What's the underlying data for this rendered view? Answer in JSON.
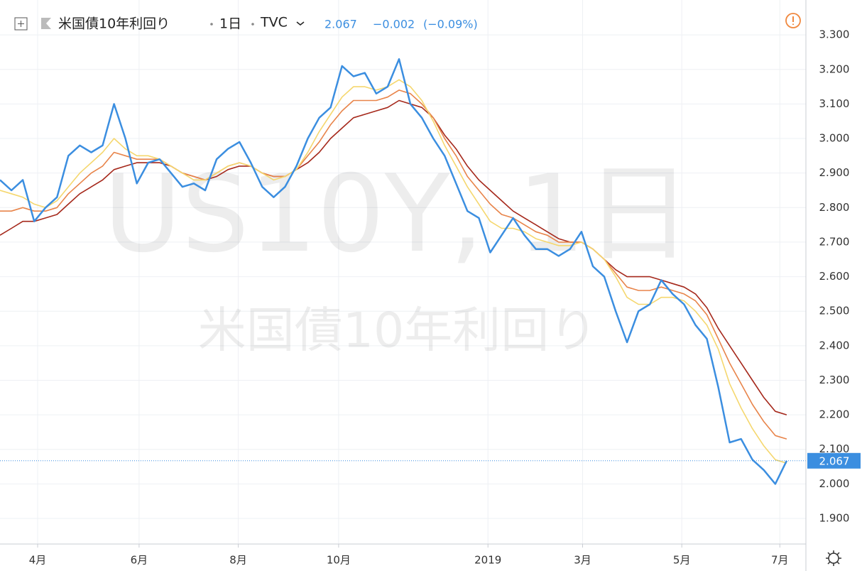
{
  "header": {
    "title": "米国債10年利回り",
    "interval": "1日",
    "exchange": "TVC",
    "last": 2.067,
    "change": "−0.002",
    "change_pct": "(−0.09%)"
  },
  "watermark": {
    "symbol": "US10Y, 1日",
    "title": "米国債10年利回り"
  },
  "chart_data": {
    "type": "line",
    "x": [
      0,
      1,
      2,
      3,
      4,
      5,
      6,
      7,
      8,
      9,
      10,
      11,
      12,
      13,
      14,
      15,
      16,
      17,
      18,
      19,
      20,
      21,
      22,
      23,
      24,
      25,
      26,
      27,
      28,
      29,
      30,
      31,
      32,
      33,
      34,
      35,
      36,
      37,
      38,
      39,
      40,
      41,
      42,
      43,
      44,
      45,
      46,
      47,
      48,
      49,
      50,
      51,
      52,
      53,
      54,
      55,
      56,
      57,
      58,
      59,
      60,
      61,
      62,
      63,
      64,
      65,
      66,
      67,
      68,
      69
    ],
    "series": [
      {
        "color": "#a5281b",
        "values": [
          2.72,
          2.74,
          2.76,
          2.76,
          2.77,
          2.78,
          2.81,
          2.84,
          2.86,
          2.88,
          2.91,
          2.92,
          2.93,
          2.93,
          2.93,
          2.92,
          2.9,
          2.89,
          2.88,
          2.89,
          2.91,
          2.92,
          2.92,
          2.9,
          2.89,
          2.89,
          2.91,
          2.93,
          2.96,
          3.0,
          3.03,
          3.06,
          3.07,
          3.08,
          3.09,
          3.11,
          3.1,
          3.09,
          3.06,
          3.01,
          2.97,
          2.92,
          2.88,
          2.85,
          2.82,
          2.79,
          2.77,
          2.75,
          2.73,
          2.71,
          2.7,
          2.7,
          2.68,
          2.65,
          2.62,
          2.6,
          2.6,
          2.6,
          2.59,
          2.58,
          2.57,
          2.55,
          2.51,
          2.45,
          2.4,
          2.35,
          2.3,
          2.25,
          2.21,
          2.2
        ]
      },
      {
        "color": "#e8844a",
        "values": [
          2.79,
          2.79,
          2.8,
          2.79,
          2.79,
          2.8,
          2.84,
          2.87,
          2.9,
          2.92,
          2.96,
          2.95,
          2.94,
          2.94,
          2.94,
          2.92,
          2.9,
          2.89,
          2.88,
          2.9,
          2.92,
          2.93,
          2.92,
          2.9,
          2.89,
          2.89,
          2.91,
          2.95,
          2.99,
          3.04,
          3.08,
          3.11,
          3.11,
          3.11,
          3.12,
          3.14,
          3.13,
          3.1,
          3.06,
          3.0,
          2.95,
          2.89,
          2.85,
          2.81,
          2.78,
          2.77,
          2.75,
          2.73,
          2.72,
          2.7,
          2.7,
          2.7,
          2.68,
          2.65,
          2.61,
          2.57,
          2.56,
          2.56,
          2.57,
          2.56,
          2.55,
          2.53,
          2.49,
          2.42,
          2.35,
          2.29,
          2.23,
          2.18,
          2.14,
          2.13
        ]
      },
      {
        "color": "#f5d76e",
        "values": [
          2.85,
          2.84,
          2.83,
          2.81,
          2.8,
          2.82,
          2.86,
          2.9,
          2.93,
          2.96,
          3.0,
          2.97,
          2.95,
          2.95,
          2.94,
          2.92,
          2.9,
          2.88,
          2.88,
          2.9,
          2.92,
          2.93,
          2.92,
          2.9,
          2.88,
          2.89,
          2.91,
          2.96,
          3.02,
          3.07,
          3.12,
          3.15,
          3.15,
          3.14,
          3.15,
          3.17,
          3.15,
          3.11,
          3.05,
          2.98,
          2.92,
          2.86,
          2.81,
          2.76,
          2.74,
          2.74,
          2.73,
          2.71,
          2.7,
          2.69,
          2.69,
          2.7,
          2.68,
          2.65,
          2.6,
          2.54,
          2.52,
          2.52,
          2.54,
          2.54,
          2.53,
          2.5,
          2.46,
          2.39,
          2.29,
          2.22,
          2.16,
          2.11,
          2.07,
          2.06
        ]
      },
      {
        "color": "#3b8ee0",
        "values": [
          2.88,
          2.85,
          2.88,
          2.76,
          2.8,
          2.83,
          2.95,
          2.98,
          2.96,
          2.98,
          3.1,
          3.0,
          2.87,
          2.93,
          2.94,
          2.9,
          2.86,
          2.87,
          2.85,
          2.94,
          2.97,
          2.99,
          2.93,
          2.86,
          2.83,
          2.86,
          2.92,
          3.0,
          3.06,
          3.09,
          3.21,
          3.18,
          3.19,
          3.13,
          3.15,
          3.23,
          3.1,
          3.06,
          3.0,
          2.95,
          2.87,
          2.79,
          2.77,
          2.67,
          2.72,
          2.77,
          2.72,
          2.68,
          2.68,
          2.66,
          2.68,
          2.73,
          2.63,
          2.6,
          2.5,
          2.41,
          2.5,
          2.52,
          2.59,
          2.55,
          2.52,
          2.46,
          2.42,
          2.28,
          2.12,
          2.13,
          2.07,
          2.04,
          2.0,
          2.067
        ]
      }
    ],
    "xlim": [
      0,
      70.5
    ],
    "xticks": [
      {
        "value": 3.3,
        "label": "4月"
      },
      {
        "value": 12.2,
        "label": "6月"
      },
      {
        "value": 20.9,
        "label": "8月"
      },
      {
        "value": 29.7,
        "label": "10月"
      },
      {
        "value": 42.8,
        "label": "2019"
      },
      {
        "value": 51.1,
        "label": "3月"
      },
      {
        "value": 59.8,
        "label": "5月"
      },
      {
        "value": 68.4,
        "label": "7月"
      }
    ],
    "ylim": [
      1.826,
      3.401
    ],
    "yticks": [
      {
        "value": 1.9,
        "label": "1.900"
      },
      {
        "value": 2.0,
        "label": "2.000"
      },
      {
        "value": 2.1,
        "label": "2.100"
      },
      {
        "value": 2.2,
        "label": "2.200"
      },
      {
        "value": 2.3,
        "label": "2.300"
      },
      {
        "value": 2.4,
        "label": "2.400"
      },
      {
        "value": 2.5,
        "label": "2.500"
      },
      {
        "value": 2.6,
        "label": "2.600"
      },
      {
        "value": 2.7,
        "label": "2.700"
      },
      {
        "value": 2.8,
        "label": "2.800"
      },
      {
        "value": 2.9,
        "label": "2.900"
      },
      {
        "value": 3.0,
        "label": "3.000"
      },
      {
        "value": 3.1,
        "label": "3.100"
      },
      {
        "value": 3.2,
        "label": "3.200"
      },
      {
        "value": 3.3,
        "label": "3.300"
      }
    ],
    "grid": true
  }
}
